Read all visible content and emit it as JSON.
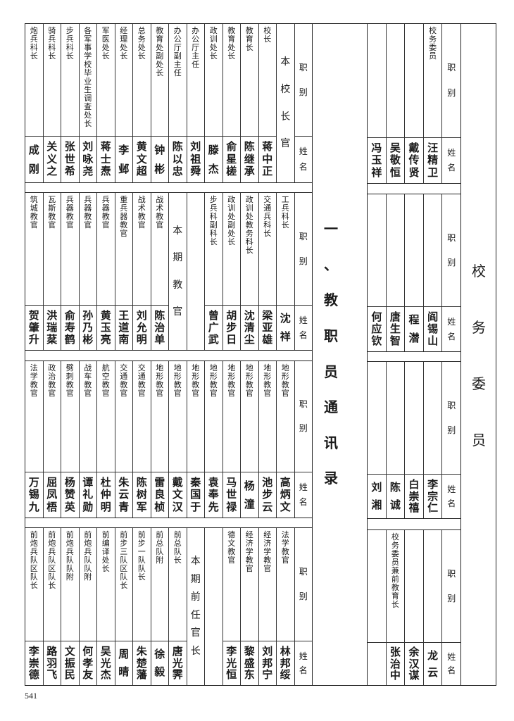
{
  "page_number": "541",
  "section_title": "一、教职员通讯录",
  "header": {
    "job": "职别",
    "name": "姓名"
  },
  "committee": {
    "title": "校务委员",
    "blocks": [
      {
        "columns": [
          {
            "title": "校务委员",
            "name": "汪精卫"
          },
          {
            "title": "",
            "name": "戴传贤"
          },
          {
            "title": "",
            "name": "吴敬恒"
          },
          {
            "title": "",
            "name": "冯玉祥"
          }
        ]
      },
      {
        "columns": [
          {
            "title": "",
            "name": "阎锡山"
          },
          {
            "title": "",
            "name": "程潜"
          },
          {
            "title": "",
            "name": "唐生智"
          },
          {
            "title": "",
            "name": "何应钦"
          }
        ]
      },
      {
        "columns": [
          {
            "title": "",
            "name": "李宗仁"
          },
          {
            "title": "",
            "name": "白崇禧"
          },
          {
            "title": "",
            "name": "陈诚"
          },
          {
            "title": "",
            "name": "刘湘"
          }
        ]
      },
      {
        "columns": [
          {
            "title": "",
            "name": "龙云"
          },
          {
            "title": "",
            "name": "余汉谋"
          },
          {
            "title": "校务委员兼前教育长",
            "name": "张治中"
          },
          {
            "title": "",
            "name": ""
          }
        ]
      }
    ]
  },
  "directory": {
    "blocks": [
      {
        "columns": [
          {
            "label": "本校长官"
          },
          {
            "title": "校长",
            "name": "蒋中正"
          },
          {
            "title": "教育长",
            "name": "陈继承"
          },
          {
            "title": "教育处长",
            "name": "俞星槎"
          },
          {
            "title": "政训处长",
            "name": "滕杰"
          },
          {
            "title": "办公厅主任",
            "name": "刘祖舜"
          },
          {
            "title": "办公厅副主任",
            "name": "陈以忠"
          },
          {
            "title": "教育处副处长",
            "name": "钟彬"
          },
          {
            "title": "总务处长",
            "name": "黄文超"
          },
          {
            "title": "经理处长",
            "name": "李邺"
          },
          {
            "title": "军医处长",
            "name": "蒋士焘"
          },
          {
            "title": "各军事学校毕业生调查处长",
            "name": "刘咏尧"
          },
          {
            "title": "步兵科长",
            "name": "张世希"
          },
          {
            "title": "骑兵科长",
            "name": "关义之"
          },
          {
            "title": "炮兵科长",
            "name": "成刚"
          }
        ]
      },
      {
        "columns": [
          {
            "title": "工兵科长",
            "name": "沈祥"
          },
          {
            "title": "交通兵科长",
            "name": "梁亚雄"
          },
          {
            "title": "政训处教务科长",
            "name": "沈清尘"
          },
          {
            "title": "政训处副处长",
            "name": "胡步日"
          },
          {
            "title": "步兵科副科长",
            "name": "曾广武"
          },
          {
            "label": ""
          },
          {
            "label": "本期教官"
          },
          {
            "title": "战术教官",
            "name": "陈治单"
          },
          {
            "title": "战术教官",
            "name": "刘允明"
          },
          {
            "title": "重兵器教官",
            "name": "王道南"
          },
          {
            "title": "兵器教官",
            "name": "黄玉亮"
          },
          {
            "title": "兵器教官",
            "name": "孙乃彬"
          },
          {
            "title": "兵器教官",
            "name": "俞寿鹤"
          },
          {
            "title": "瓦斯教官",
            "name": "洪瑞棻"
          },
          {
            "title": "筑城教官",
            "name": "贺肇升"
          }
        ]
      },
      {
        "columns": [
          {
            "title": "地形教官",
            "name": "高炳文"
          },
          {
            "title": "地形教官",
            "name": "池步云"
          },
          {
            "title": "地形教官",
            "name": "杨潼"
          },
          {
            "title": "地形教官",
            "name": "马世禄"
          },
          {
            "title": "地形教官",
            "name": "袁奉先"
          },
          {
            "title": "地形教官",
            "name": "秦国于"
          },
          {
            "title": "地形教官",
            "name": "戴文汉"
          },
          {
            "title": "地形教官",
            "name": "雷良桢"
          },
          {
            "title": "交通教官",
            "name": "陈树军"
          },
          {
            "title": "交通教官",
            "name": "朱云青"
          },
          {
            "title": "航空教官",
            "name": "杜仲明"
          },
          {
            "title": "战车教官",
            "name": "谭礼勋"
          },
          {
            "title": "劈刺教官",
            "name": "杨赞英"
          },
          {
            "title": "政治教官",
            "name": "屈凤梧"
          },
          {
            "title": "法学教官",
            "name": "万锡九"
          }
        ]
      },
      {
        "columns": [
          {
            "title": "法学教官",
            "name": "林邦绥"
          },
          {
            "title": "经济学教官",
            "name": "刘邦宁"
          },
          {
            "title": "经济学教官",
            "name": "黎盛东"
          },
          {
            "title": "德文教官",
            "name": "李光恒"
          },
          {
            "label": ""
          },
          {
            "label": "本期前任官长"
          },
          {
            "title": "前总队长",
            "name": "唐光霁"
          },
          {
            "title": "前总队附",
            "name": "徐毅"
          },
          {
            "title": "前步一队队长",
            "name": "朱楚藩"
          },
          {
            "title": "前步三队区队长",
            "name": "周晴"
          },
          {
            "title": "前编译处长",
            "name": "吴光杰"
          },
          {
            "title": "前炮兵队队附",
            "name": "何孝友"
          },
          {
            "title": "前炮兵队队附",
            "name": "文振民"
          },
          {
            "title": "前炮兵队区队长",
            "name": "路羽飞"
          },
          {
            "title": "前炮兵队区队长",
            "name": "李崇德"
          }
        ]
      }
    ]
  }
}
